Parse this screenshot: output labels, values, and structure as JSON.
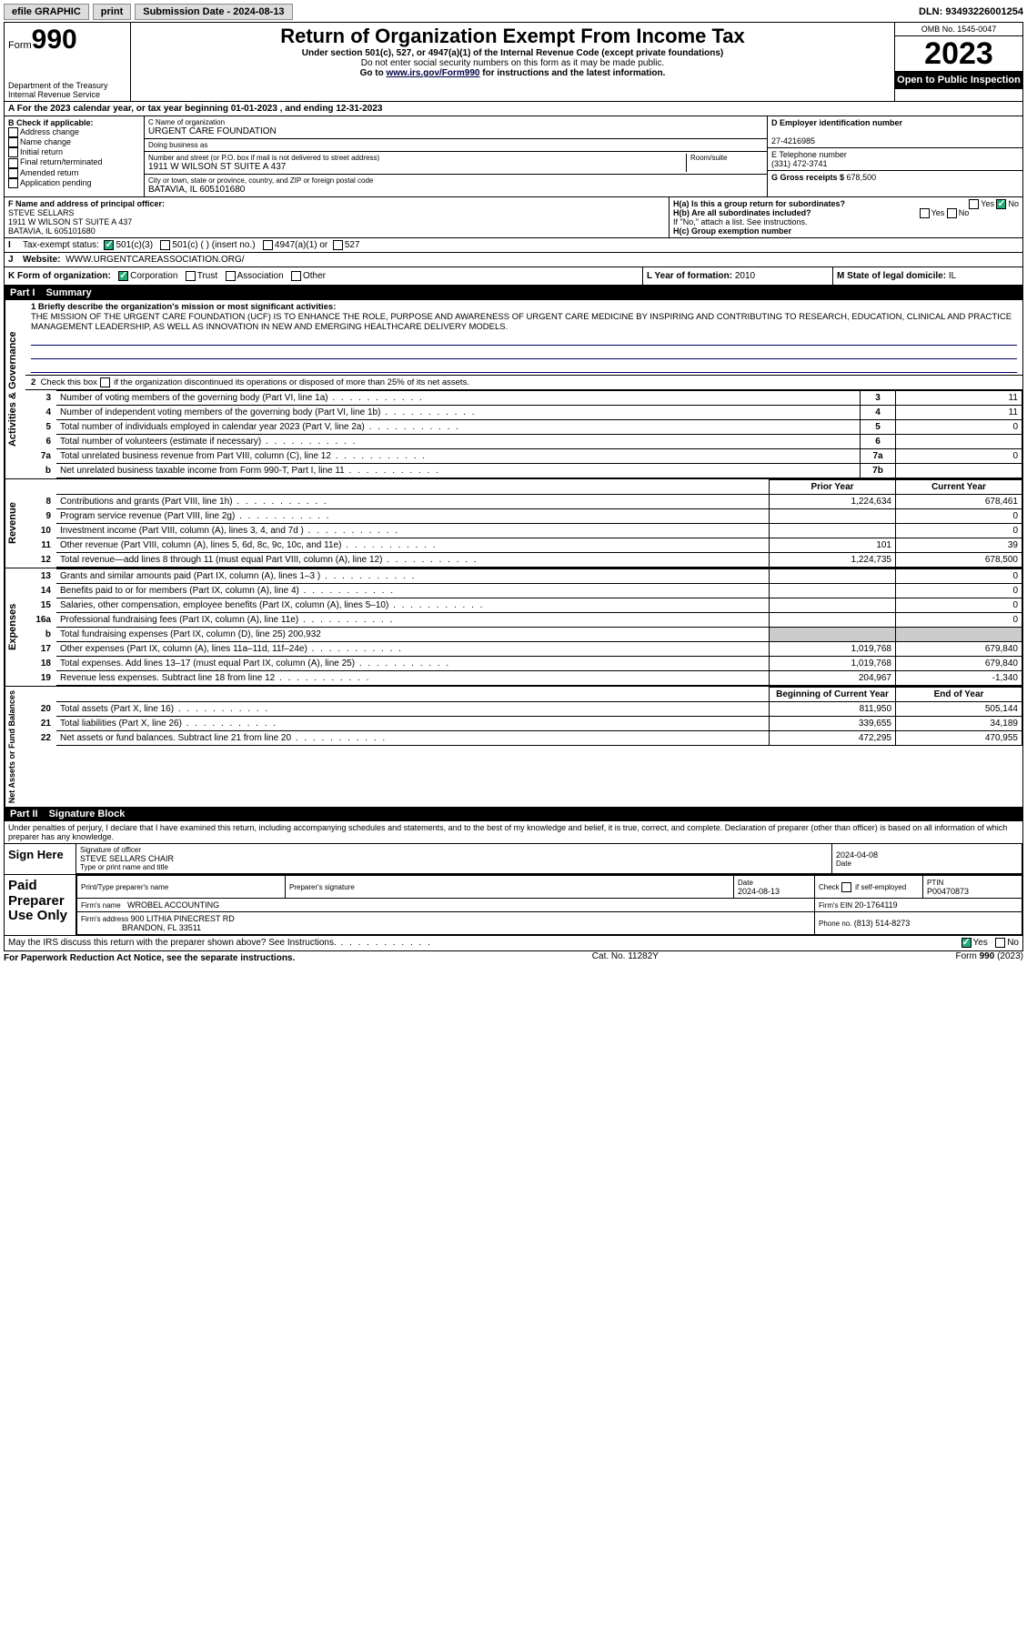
{
  "topbar": {
    "efile": "efile GRAPHIC",
    "print": "print",
    "submission_label": "Submission Date - ",
    "submission_date": "2024-08-13",
    "dln_label": "DLN: ",
    "dln": "93493226001254"
  },
  "header": {
    "form_label": "Form",
    "form_number": "990",
    "dept": "Department of the Treasury",
    "irs": "Internal Revenue Service",
    "title": "Return of Organization Exempt From Income Tax",
    "sub": "Under section 501(c), 527, or 4947(a)(1) of the Internal Revenue Code (except private foundations)",
    "note1": "Do not enter social security numbers on this form as it may be made public.",
    "note2": "Go to www.irs.gov/Form990 for instructions and the latest information.",
    "omb": "OMB No. 1545-0047",
    "year": "2023",
    "open": "Open to Public Inspection"
  },
  "row_a": {
    "text": "A For the 2023 calendar year, or tax year beginning 01-01-2023   , and ending 12-31-2023"
  },
  "col_b": {
    "label": "B Check if applicable:",
    "items": [
      "Address change",
      "Name change",
      "Initial return",
      "Final return/terminated",
      "Amended return",
      "Application pending"
    ]
  },
  "col_c": {
    "name_label": "C Name of organization",
    "name": "URGENT CARE FOUNDATION",
    "dba_label": "Doing business as",
    "dba": "",
    "addr_label": "Number and street (or P.O. box if mail is not delivered to street address)",
    "room_label": "Room/suite",
    "addr": "1911 W WILSON ST SUITE A 437",
    "city_label": "City or town, state or province, country, and ZIP or foreign postal code",
    "city": "BATAVIA, IL  605101680"
  },
  "col_d": {
    "ein_label": "D Employer identification number",
    "ein": "27-4216985",
    "tel_label": "E Telephone number",
    "tel": "(331) 472-3741",
    "gross_label": "G Gross receipts $ ",
    "gross": "678,500"
  },
  "row_f": {
    "label": "F Name and address of principal officer:",
    "name": "STEVE SELLARS",
    "addr1": "1911 W WILSON ST SUITE A 437",
    "addr2": "BATAVIA, IL  605101680"
  },
  "row_h": {
    "ha": "H(a)  Is this a group return for subordinates?",
    "hb": "H(b)  Are all subordinates included?",
    "hb_note": "If \"No,\" attach a list. See instructions.",
    "hc": "H(c)  Group exemption number ",
    "yes": "Yes",
    "no": "No"
  },
  "row_i": {
    "label": "Tax-exempt status:",
    "o1": "501(c)(3)",
    "o2": "501(c) (  ) (insert no.)",
    "o3": "4947(a)(1) or",
    "o4": "527"
  },
  "row_j": {
    "label": "Website: ",
    "value": "WWW.URGENTCAREASSOCIATION.ORG/"
  },
  "row_k": {
    "label": "K Form of organization:",
    "opts": [
      "Corporation",
      "Trust",
      "Association",
      "Other"
    ]
  },
  "row_l": {
    "label": "L Year of formation: ",
    "value": "2010"
  },
  "row_m": {
    "label": "M State of legal domicile: ",
    "value": "IL"
  },
  "part1": {
    "header_pt": "Part I",
    "header_title": "Summary",
    "side_gov": "Activities & Governance",
    "side_rev": "Revenue",
    "side_exp": "Expenses",
    "side_net": "Net Assets or Fund Balances",
    "l1": "1  Briefly describe the organization's mission or most significant activities:",
    "mission": "THE MISSION OF THE URGENT CARE FOUNDATION (UCF) IS TO ENHANCE THE ROLE, PURPOSE AND AWARENESS OF URGENT CARE MEDICINE BY INSPIRING AND CONTRIBUTING TO RESEARCH, EDUCATION, CLINICAL AND PRACTICE MANAGEMENT LEADERSHIP, AS WELL AS INNOVATION IN NEW AND EMERGING HEALTHCARE DELIVERY MODELS.",
    "l2": "2   Check this box        if the organization discontinued its operations or disposed of more than 25% of its net assets.",
    "rows_gov": [
      {
        "n": "3",
        "d": "Number of voting members of the governing body (Part VI, line 1a)",
        "k": "3",
        "v": "11"
      },
      {
        "n": "4",
        "d": "Number of independent voting members of the governing body (Part VI, line 1b)",
        "k": "4",
        "v": "11"
      },
      {
        "n": "5",
        "d": "Total number of individuals employed in calendar year 2023 (Part V, line 2a)",
        "k": "5",
        "v": "0"
      },
      {
        "n": "6",
        "d": "Total number of volunteers (estimate if necessary)",
        "k": "6",
        "v": ""
      },
      {
        "n": "7a",
        "d": "Total unrelated business revenue from Part VIII, column (C), line 12",
        "k": "7a",
        "v": "0"
      },
      {
        "n": "b",
        "d": "Net unrelated business taxable income from Form 990-T, Part I, line 11",
        "k": "7b",
        "v": ""
      }
    ],
    "hdr_prior": "Prior Year",
    "hdr_curr": "Current Year",
    "rows_rev": [
      {
        "n": "8",
        "d": "Contributions and grants (Part VIII, line 1h)",
        "p": "1,224,634",
        "c": "678,461"
      },
      {
        "n": "9",
        "d": "Program service revenue (Part VIII, line 2g)",
        "p": "",
        "c": "0"
      },
      {
        "n": "10",
        "d": "Investment income (Part VIII, column (A), lines 3, 4, and 7d )",
        "p": "",
        "c": "0"
      },
      {
        "n": "11",
        "d": "Other revenue (Part VIII, column (A), lines 5, 6d, 8c, 9c, 10c, and 11e)",
        "p": "101",
        "c": "39"
      },
      {
        "n": "12",
        "d": "Total revenue—add lines 8 through 11 (must equal Part VIII, column (A), line 12)",
        "p": "1,224,735",
        "c": "678,500"
      }
    ],
    "rows_exp": [
      {
        "n": "13",
        "d": "Grants and similar amounts paid (Part IX, column (A), lines 1–3 )",
        "p": "",
        "c": "0"
      },
      {
        "n": "14",
        "d": "Benefits paid to or for members (Part IX, column (A), line 4)",
        "p": "",
        "c": "0"
      },
      {
        "n": "15",
        "d": "Salaries, other compensation, employee benefits (Part IX, column (A), lines 5–10)",
        "p": "",
        "c": "0"
      },
      {
        "n": "16a",
        "d": "Professional fundraising fees (Part IX, column (A), line 11e)",
        "p": "",
        "c": "0"
      },
      {
        "n": "b",
        "d": "Total fundraising expenses (Part IX, column (D), line 25) 200,932",
        "p": null,
        "c": null
      },
      {
        "n": "17",
        "d": "Other expenses (Part IX, column (A), lines 11a–11d, 11f–24e)",
        "p": "1,019,768",
        "c": "679,840"
      },
      {
        "n": "18",
        "d": "Total expenses. Add lines 13–17 (must equal Part IX, column (A), line 25)",
        "p": "1,019,768",
        "c": "679,840"
      },
      {
        "n": "19",
        "d": "Revenue less expenses. Subtract line 18 from line 12",
        "p": "204,967",
        "c": "-1,340"
      }
    ],
    "hdr_beg": "Beginning of Current Year",
    "hdr_end": "End of Year",
    "rows_net": [
      {
        "n": "20",
        "d": "Total assets (Part X, line 16)",
        "p": "811,950",
        "c": "505,144"
      },
      {
        "n": "21",
        "d": "Total liabilities (Part X, line 26)",
        "p": "339,655",
        "c": "34,189"
      },
      {
        "n": "22",
        "d": "Net assets or fund balances. Subtract line 21 from line 20",
        "p": "472,295",
        "c": "470,955"
      }
    ]
  },
  "part2": {
    "header_pt": "Part II",
    "header_title": "Signature Block",
    "note": "Under penalties of perjury, I declare that I have examined this return, including accompanying schedules and statements, and to the best of my knowledge and belief, it is true, correct, and complete. Declaration of preparer (other than officer) is based on all information of which preparer has any knowledge.",
    "sign_here": "Sign Here",
    "sig_officer": "Signature of officer",
    "sig_name": "STEVE SELLARS  CHAIR",
    "sig_type": "Type or print name and title",
    "date_label": "Date",
    "date": "2024-04-08",
    "paid": "Paid Preparer Use Only",
    "prep_name_label": "Print/Type preparer's name",
    "prep_sig_label": "Preparer's signature",
    "prep_date": "2024-08-13",
    "check_self": "Check         if self-employed",
    "ptin_label": "PTIN",
    "ptin": "P00470873",
    "firm_name_label": "Firm's name   ",
    "firm_name": "WROBEL ACCOUNTING",
    "firm_ein_label": "Firm's EIN  ",
    "firm_ein": "20-1764119",
    "firm_addr_label": "Firm's address ",
    "firm_addr": "900 LITHIA PINECREST RD",
    "firm_city": "BRANDON, FL  33511",
    "phone_label": "Phone no. ",
    "phone": "(813) 514-8273",
    "discuss": "May the IRS discuss this return with the preparer shown above? See Instructions.",
    "yes": "Yes",
    "no": "No"
  },
  "footer": {
    "paperwork": "For Paperwork Reduction Act Notice, see the separate instructions.",
    "cat": "Cat. No. 11282Y",
    "form": "Form 990 (2023)"
  }
}
